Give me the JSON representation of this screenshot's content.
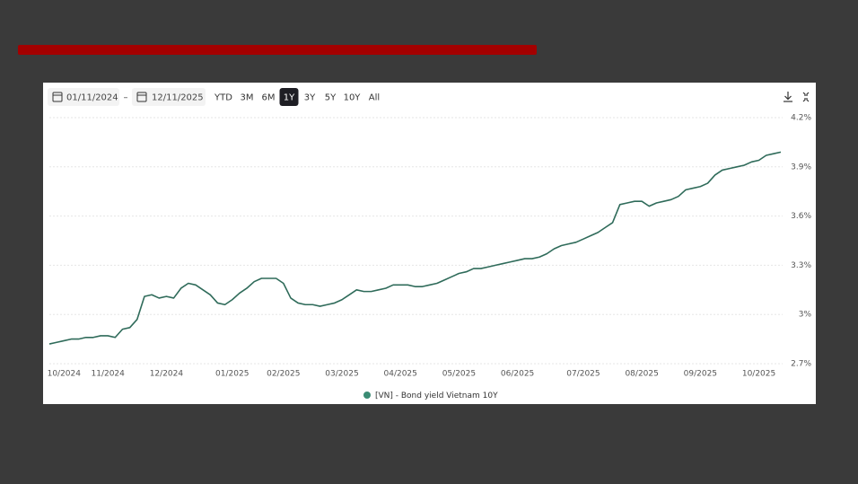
{
  "toolbar": {
    "date_from": "01/11/2024",
    "date_to": "12/11/2025",
    "separator": "–",
    "ranges": [
      "YTD",
      "3M",
      "6M",
      "1Y",
      "3Y",
      "5Y",
      "10Y",
      "All"
    ],
    "active": "1Y"
  },
  "chart_data": {
    "type": "line",
    "categories": [
      null,
      null,
      "10/2024",
      null,
      null,
      null,
      null,
      null,
      "11/2024",
      null,
      null,
      null,
      null,
      null,
      null,
      null,
      "12/2024",
      null,
      null,
      null,
      null,
      null,
      null,
      null,
      null,
      "01/2025",
      null,
      null,
      null,
      null,
      null,
      null,
      "02/2025",
      null,
      null,
      null,
      null,
      null,
      null,
      null,
      "03/2025",
      null,
      null,
      null,
      null,
      null,
      null,
      null,
      "04/2025",
      null,
      null,
      null,
      null,
      null,
      null,
      null,
      "05/2025",
      null,
      null,
      null,
      null,
      null,
      null,
      null,
      "06/2025",
      null,
      null,
      null,
      null,
      null,
      null,
      null,
      null,
      "07/2025",
      null,
      null,
      null,
      null,
      null,
      null,
      null,
      "08/2025",
      null,
      null,
      null,
      null,
      null,
      null,
      null,
      "09/2025",
      null,
      null,
      null,
      null,
      null,
      null,
      null,
      "10/2025",
      null,
      null,
      null
    ],
    "series": [
      {
        "name": "[VN] - Bond yield Vietnam 10Y",
        "color": "#2f6b5a",
        "legend_color": "#3b8c74",
        "values": [
          2.82,
          2.83,
          2.84,
          2.85,
          2.85,
          2.86,
          2.86,
          2.87,
          2.87,
          2.86,
          2.91,
          2.92,
          2.97,
          3.11,
          3.12,
          3.1,
          3.11,
          3.1,
          3.16,
          3.19,
          3.18,
          3.15,
          3.12,
          3.07,
          3.06,
          3.09,
          3.13,
          3.16,
          3.2,
          3.22,
          3.22,
          3.22,
          3.19,
          3.1,
          3.07,
          3.06,
          3.06,
          3.05,
          3.06,
          3.07,
          3.09,
          3.12,
          3.15,
          3.14,
          3.14,
          3.15,
          3.16,
          3.18,
          3.18,
          3.18,
          3.17,
          3.17,
          3.18,
          3.19,
          3.21,
          3.23,
          3.25,
          3.26,
          3.28,
          3.28,
          3.29,
          3.3,
          3.31,
          3.32,
          3.33,
          3.34,
          3.34,
          3.35,
          3.37,
          3.4,
          3.42,
          3.43,
          3.44,
          3.46,
          3.48,
          3.5,
          3.53,
          3.56,
          3.67,
          3.68,
          3.69,
          3.69,
          3.66,
          3.68,
          3.69,
          3.7,
          3.72,
          3.76,
          3.77,
          3.78,
          3.8,
          3.85,
          3.88,
          3.89,
          3.9,
          3.91,
          3.93,
          3.94,
          3.97,
          3.98,
          3.99
        ]
      }
    ],
    "ylim": [
      2.7,
      4.2
    ],
    "yticks": [
      {
        "value": 2.7,
        "label": "2.7%"
      },
      {
        "value": 3,
        "label": "3%"
      },
      {
        "value": 3.3,
        "label": "3.3%"
      },
      {
        "value": 3.6,
        "label": "3.6%"
      },
      {
        "value": 3.9,
        "label": "3.9%"
      },
      {
        "value": 4.2,
        "label": "4.2%"
      }
    ],
    "grid": true
  }
}
